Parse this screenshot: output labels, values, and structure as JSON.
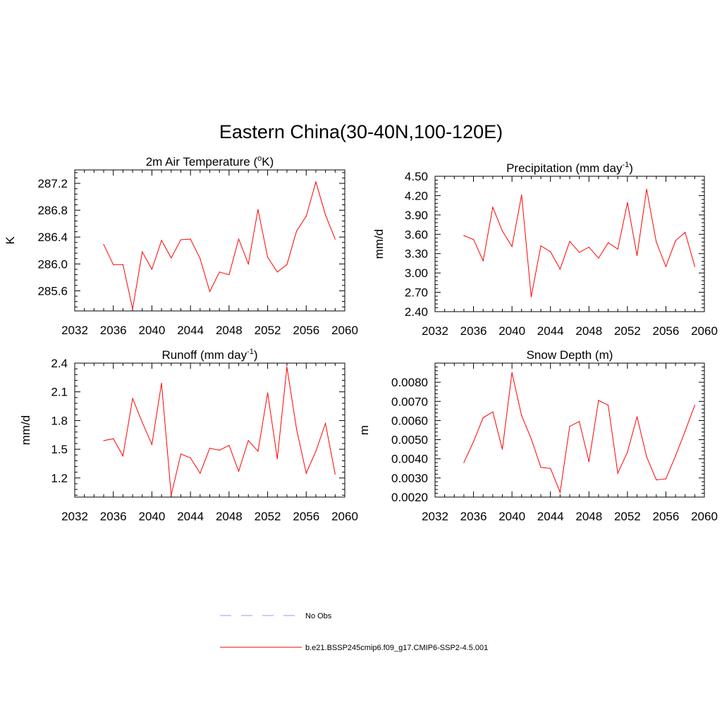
{
  "figure": {
    "title": "Eastern China(30-40N,100-120E)"
  },
  "legend": [
    {
      "label": "No Obs",
      "color": "#9999ff",
      "style": "dashed"
    },
    {
      "label": "b.e21.BSSP245cmip6.f09_g17.CMIP6-SSP2-4.5.001",
      "color": "#ff0000",
      "style": "solid"
    }
  ],
  "chart_data": [
    {
      "type": "line",
      "title": "2m Air Temperature (",
      "title_sup": "o",
      "title_tail": "K)",
      "ylabel": "K",
      "xlim": [
        2032,
        2060
      ],
      "ylim": [
        285.3,
        287.4
      ],
      "xticks": [
        2032,
        2036,
        2040,
        2044,
        2048,
        2052,
        2056,
        2060
      ],
      "xtick_labels": [
        "2032",
        "2036",
        "2040",
        "2044",
        "2048",
        "2052",
        "2056",
        "2060"
      ],
      "yticks": [
        285.6,
        286.0,
        286.4,
        286.8,
        287.2
      ],
      "ytick_labels": [
        "285.6",
        "286.0",
        "286.4",
        "286.8",
        "287.2"
      ],
      "x": [
        2035,
        2036,
        2037,
        2038,
        2039,
        2040,
        2041,
        2042,
        2043,
        2044,
        2045,
        2046,
        2047,
        2048,
        2049,
        2050,
        2051,
        2052,
        2053,
        2054,
        2055,
        2056,
        2057,
        2058,
        2059
      ],
      "series": [
        {
          "color": "#ff0000",
          "values": [
            286.29,
            285.99,
            285.99,
            285.33,
            286.18,
            285.92,
            286.35,
            286.09,
            286.36,
            286.37,
            286.08,
            285.59,
            285.88,
            285.84,
            286.37,
            286.0,
            286.81,
            286.1,
            285.88,
            285.99,
            286.49,
            286.71,
            287.22,
            286.73,
            286.37
          ]
        }
      ]
    },
    {
      "type": "line",
      "title": "Precipitation (mm day",
      "title_sup": "-1",
      "title_tail": ")",
      "ylabel": "mm/d",
      "xlim": [
        2032,
        2060
      ],
      "ylim": [
        2.4,
        4.5
      ],
      "xticks": [
        2032,
        2036,
        2040,
        2044,
        2048,
        2052,
        2056,
        2060
      ],
      "xtick_labels": [
        "2032",
        "2036",
        "2040",
        "2044",
        "2048",
        "2052",
        "2056",
        "2060"
      ],
      "yticks": [
        2.4,
        2.7,
        3.0,
        3.3,
        3.6,
        3.9,
        4.2,
        4.5
      ],
      "ytick_labels": [
        "2.40",
        "2.70",
        "3.00",
        "3.30",
        "3.60",
        "3.90",
        "4.20",
        "4.50"
      ],
      "x": [
        2035,
        2036,
        2037,
        2038,
        2039,
        2040,
        2041,
        2042,
        2043,
        2044,
        2045,
        2046,
        2047,
        2048,
        2049,
        2050,
        2051,
        2052,
        2053,
        2054,
        2055,
        2056,
        2057,
        2058,
        2059
      ],
      "series": [
        {
          "color": "#ff0000",
          "values": [
            3.58,
            3.52,
            3.19,
            4.02,
            3.65,
            3.41,
            4.21,
            2.63,
            3.42,
            3.33,
            3.06,
            3.49,
            3.32,
            3.4,
            3.23,
            3.47,
            3.37,
            4.09,
            3.27,
            4.3,
            3.48,
            3.1,
            3.5,
            3.63,
            3.1
          ]
        }
      ]
    },
    {
      "type": "line",
      "title": "Runoff (mm day",
      "title_sup": "-1",
      "title_tail": ")",
      "ylabel": "mm/d",
      "xlim": [
        2032,
        2060
      ],
      "ylim": [
        1.0,
        2.4
      ],
      "xticks": [
        2032,
        2036,
        2040,
        2044,
        2048,
        2052,
        2056,
        2060
      ],
      "xtick_labels": [
        "2032",
        "2036",
        "2040",
        "2044",
        "2048",
        "2052",
        "2056",
        "2060"
      ],
      "yticks": [
        1.2,
        1.5,
        1.8,
        2.1,
        2.4
      ],
      "ytick_labels": [
        "1.2",
        "1.5",
        "1.8",
        "2.1",
        "2.4"
      ],
      "x": [
        2035,
        2036,
        2037,
        2038,
        2039,
        2040,
        2041,
        2042,
        2043,
        2044,
        2045,
        2046,
        2047,
        2048,
        2049,
        2050,
        2051,
        2052,
        2053,
        2054,
        2055,
        2056,
        2057,
        2058,
        2059
      ],
      "series": [
        {
          "color": "#ff0000",
          "values": [
            1.59,
            1.61,
            1.43,
            2.03,
            1.78,
            1.55,
            2.19,
            1.02,
            1.45,
            1.41,
            1.25,
            1.51,
            1.49,
            1.54,
            1.27,
            1.59,
            1.48,
            2.09,
            1.4,
            2.36,
            1.71,
            1.25,
            1.48,
            1.77,
            1.24
          ]
        }
      ]
    },
    {
      "type": "line",
      "title": "Snow Depth (m)",
      "title_sup": "",
      "title_tail": "",
      "ylabel": "m",
      "xlim": [
        2032,
        2060
      ],
      "ylim": [
        0.002,
        0.009
      ],
      "xticks": [
        2032,
        2036,
        2040,
        2044,
        2048,
        2052,
        2056,
        2060
      ],
      "xtick_labels": [
        "2032",
        "2036",
        "2040",
        "2044",
        "2048",
        "2052",
        "2056",
        "2060"
      ],
      "yticks": [
        0.002,
        0.003,
        0.004,
        0.005,
        0.006,
        0.007,
        0.008
      ],
      "ytick_labels": [
        "0.0020",
        "0.0030",
        "0.0040",
        "0.0050",
        "0.0060",
        "0.0070",
        "0.0080"
      ],
      "x": [
        2035,
        2036,
        2037,
        2038,
        2039,
        2040,
        2041,
        2042,
        2043,
        2044,
        2045,
        2046,
        2047,
        2048,
        2049,
        2050,
        2051,
        2052,
        2053,
        2054,
        2055,
        2056,
        2057,
        2058,
        2059
      ],
      "series": [
        {
          "color": "#ff0000",
          "values": [
            0.0038,
            0.0049,
            0.00615,
            0.00645,
            0.0045,
            0.0085,
            0.00625,
            0.00505,
            0.00355,
            0.0035,
            0.00225,
            0.0057,
            0.00595,
            0.00385,
            0.00705,
            0.0068,
            0.00325,
            0.00435,
            0.0062,
            0.0041,
            0.0029,
            0.00295,
            0.00415,
            0.00545,
            0.0068
          ]
        }
      ]
    }
  ]
}
